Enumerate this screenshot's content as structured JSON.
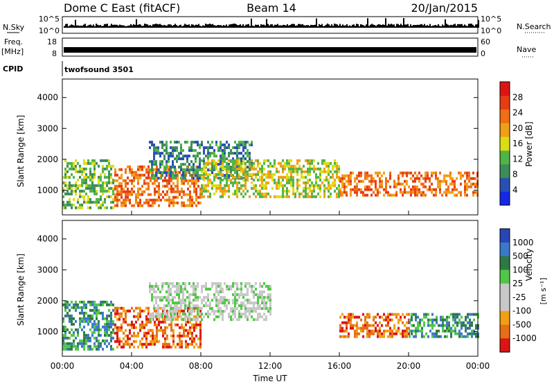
{
  "header": {
    "station": "Dome C East (fitACF)",
    "beam": "Beam 14",
    "date": "20/Jan/2015"
  },
  "top_panels": {
    "nsky_label": "N.Sky",
    "nsky_ticks": [
      "10^5",
      "10^0"
    ],
    "nsearch_label": "N.Search",
    "nsearch_ticks": [
      "10^5",
      "10^0"
    ],
    "freq_label": "Freq.",
    "freq_unit": "[MHz]",
    "freq_ticks": [
      "18",
      "8"
    ],
    "nave_label": "Nave",
    "nave_ticks": [
      "60",
      "0"
    ],
    "cpid_label": "CPID",
    "cpid_value": "twofsound 3501"
  },
  "colors": {
    "power_scale": [
      "#1428e6",
      "#2850b4",
      "#3c8c5a",
      "#50b446",
      "#dcdc14",
      "#f0a014",
      "#f06e14",
      "#e63c14",
      "#dc1414"
    ],
    "velocity_scale": [
      "#2846b4",
      "#3c78c8",
      "#2d7a46",
      "#50c846",
      "#c8c8c8",
      "#c8c8c8",
      "#f0a014",
      "#e66e14",
      "#dc1414"
    ]
  },
  "chart_data": [
    {
      "type": "heatmap",
      "name": "power",
      "ylabel": "Slant Range [km]",
      "y_ticks": [
        "1000",
        "2000",
        "3000",
        "4000"
      ],
      "ylim": [
        200,
        4600
      ],
      "colorbar_label": "Power [dB]",
      "colorbar_ticks": [
        "4",
        "8",
        "12",
        "16",
        "20",
        "24",
        "28"
      ],
      "colorbar_range": [
        0,
        32
      ],
      "echo_regions": [
        {
          "x": [
            "00:00",
            "03:00"
          ],
          "y": [
            400,
            2000
          ],
          "value": 12
        },
        {
          "x": [
            "03:00",
            "08:00"
          ],
          "y": [
            500,
            1800
          ],
          "value": 24
        },
        {
          "x": [
            "05:00",
            "11:00"
          ],
          "y": [
            1400,
            2600
          ],
          "value": 8
        },
        {
          "x": [
            "08:00",
            "16:00"
          ],
          "y": [
            800,
            2000
          ],
          "value": 14
        },
        {
          "x": [
            "16:00",
            "24:00"
          ],
          "y": [
            800,
            1600
          ],
          "value": 22
        }
      ]
    },
    {
      "type": "heatmap",
      "name": "velocity",
      "ylabel": "Slant Range [km]",
      "y_ticks": [
        "1000",
        "2000",
        "3000",
        "4000"
      ],
      "ylim": [
        200,
        4600
      ],
      "colorbar_label": "Velocity",
      "colorbar_unit": "[m s⁻¹]",
      "colorbar_ticks": [
        "1000",
        "500",
        "100",
        "25",
        "-25",
        "-100",
        "-500",
        "-1000"
      ],
      "echo_regions": [
        {
          "x": [
            "00:00",
            "03:00"
          ],
          "y": [
            400,
            2000
          ],
          "value": 100
        },
        {
          "x": [
            "03:00",
            "08:00"
          ],
          "y": [
            500,
            1800
          ],
          "value": -500
        },
        {
          "x": [
            "05:00",
            "12:00"
          ],
          "y": [
            1400,
            2600
          ],
          "value": 0
        },
        {
          "x": [
            "16:00",
            "20:00"
          ],
          "y": [
            800,
            1600
          ],
          "value": -500
        },
        {
          "x": [
            "20:00",
            "24:00"
          ],
          "y": [
            800,
            1600
          ],
          "value": 150
        }
      ],
      "xlabel": "Time UT",
      "x_ticks": [
        "00:00",
        "04:00",
        "08:00",
        "12:00",
        "16:00",
        "20:00",
        "00:00"
      ],
      "xlim": [
        "00:00",
        "24:00"
      ]
    }
  ]
}
